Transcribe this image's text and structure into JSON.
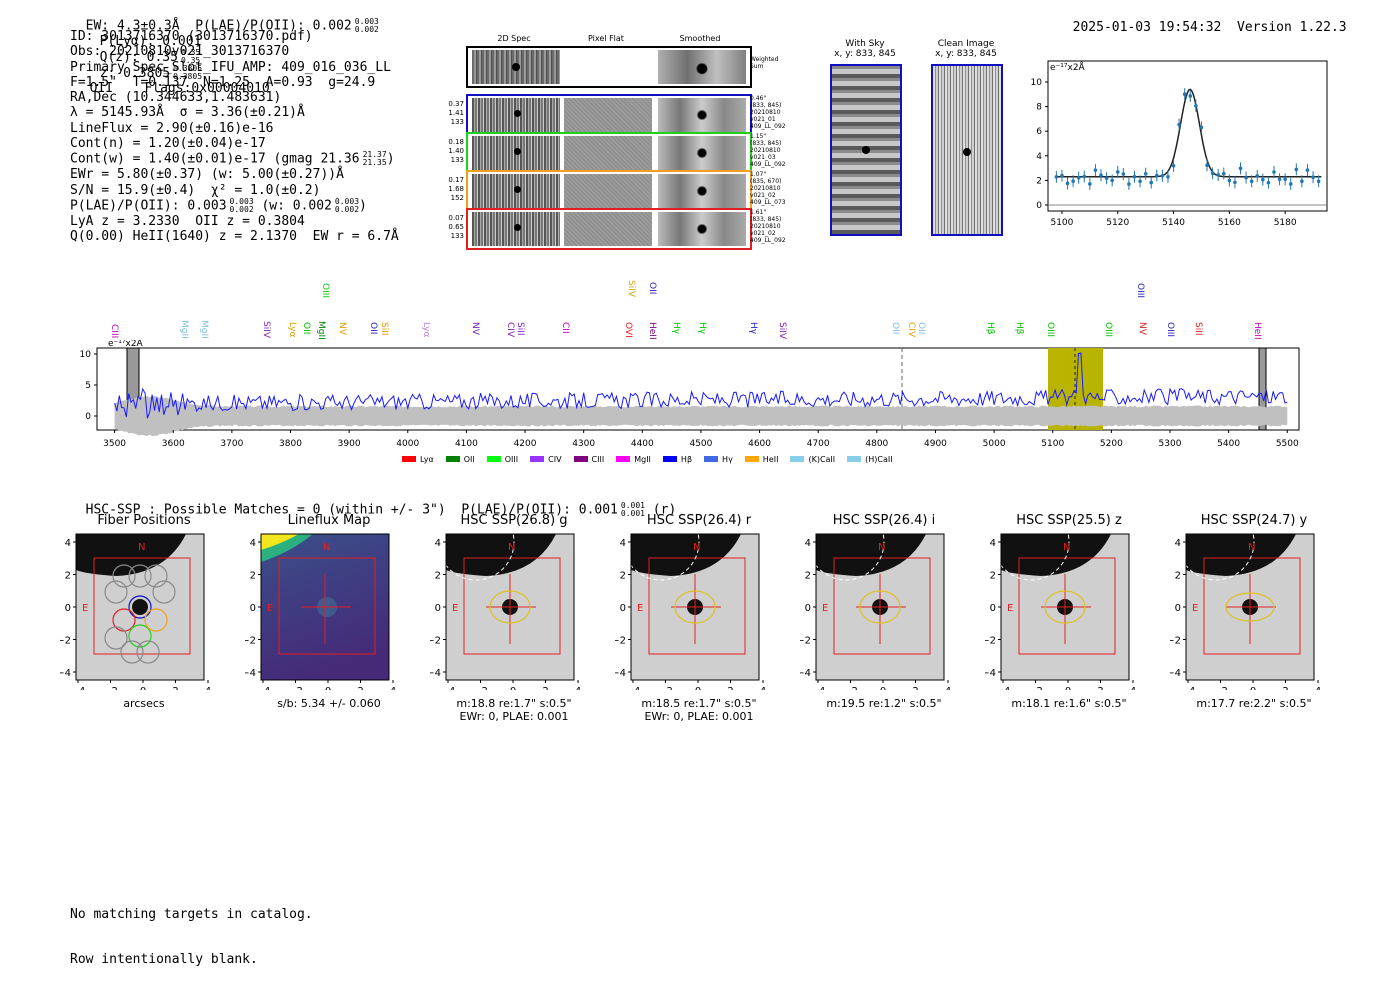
{
  "header": {
    "summary": "EW: 4.3±0.3Å  P(LAE)/P(OII): 0.002",
    "plae_sup": "0.003",
    "plae_sub": "0.002",
    "plya": "P(Lyα): 0.001",
    "qz": "Q(z): 0.35",
    "qz_sup": "0.35",
    "qz_sub": "0.35",
    "z": "z: 0.3805",
    "z_sup": "0.3805",
    "z_sub": "0.3805",
    "z_tail": "OII    Flags:0x00004010",
    "timestamp": "2025-01-03 19:54:32",
    "version": "Version 1.22.3"
  },
  "info": {
    "lines": [
      "ID: 3013716370 (3013716370.pdf)",
      "Obs: 20210810v021_3013716370",
      "Primary Spec_Slot_IFU_AMP: 409_016_036_LL",
      "F=1.5\"  T=0.137  N=1.25  A=0.93  g=24.9",
      "RA,Dec (10.344633,1.483631)",
      "λ = 5145.93Å  σ = 3.36(±0.21)Å",
      "LineFlux = 2.90(±0.16)e-16",
      "Cont(n) = 1.20(±0.04)e-17",
      "Cont(w) = 1.40(±0.01)e-17 (gmag 21.36",
      "EWr = 5.80(±0.37) (w: 5.00(±0.27))Å",
      "S/N = 15.9(±0.4)  χ² = 1.0(±0.2)",
      "P(LAE)/P(OII): 0.003",
      "LyA z = 3.2330  OII z = 0.3804",
      "Q(0.00) HeII(1640) z = 2.1370  EW r = 6.7Å"
    ],
    "gmag_sup": "21.37",
    "gmag_sub": "21.35",
    "plae2_sup": "0.003",
    "plae2_sub": "0.002",
    "plae2_tail": "(w: 0.002",
    "plae2_w_sup": "0.003",
    "plae2_w_sub": "0.002"
  },
  "spec2d": {
    "col_labels": [
      "2D Spec",
      "Pixel Flat",
      "Smoothed"
    ],
    "weighted_label": "Weighted Sum",
    "rows": [
      {
        "stats": [
          "0.37",
          "1.41",
          "133"
        ],
        "meta": [
          "0.46\"",
          "(833, 845)",
          "20210810",
          "v021_01",
          "409_LL_092"
        ],
        "color": "#1010c0"
      },
      {
        "stats": [
          "0.18",
          "1.40",
          "133"
        ],
        "meta": [
          "1.15\"",
          "(833, 845)",
          "20210810",
          "v021_03",
          "409_LL_092"
        ],
        "color": "#20d020"
      },
      {
        "stats": [
          "0.17",
          "1.68",
          "152"
        ],
        "meta": [
          "1.07\"",
          "(835, 670)",
          "20210810",
          "v021_02",
          "409_LL_073"
        ],
        "color": "#f0a020"
      },
      {
        "stats": [
          "0.07",
          "0.65",
          "133"
        ],
        "meta": [
          "1.61\"",
          "(833, 845)",
          "20210810",
          "v021_02",
          "409_LL_092"
        ],
        "color": "#e02020"
      }
    ]
  },
  "cutouts": {
    "with_sky": "With Sky",
    "with_sky_xy": "x, y: 833, 845",
    "clean": "Clean Image",
    "clean_xy": "x, y: 833, 845"
  },
  "line_fit": {
    "unit": "e⁻¹⁷x2Å",
    "yticks": [
      "0",
      "2",
      "4",
      "6",
      "8",
      "10"
    ],
    "xticks": [
      "5100",
      "5120",
      "5140",
      "5160",
      "5180"
    ]
  },
  "full_spec": {
    "unit": "e⁻¹⁷x2Å",
    "yticks": [
      "0",
      "5",
      "10"
    ],
    "xticks": [
      "3500",
      "3600",
      "3700",
      "3800",
      "3900",
      "4000",
      "4100",
      "4200",
      "4300",
      "4400",
      "4500",
      "4600",
      "4700",
      "4800",
      "4900",
      "5000",
      "5100",
      "5200",
      "5300",
      "5400",
      "5500"
    ],
    "lines": [
      {
        "label": "CIII",
        "x": 113,
        "y": 324,
        "color": "#c000c0"
      },
      {
        "label": "MgII",
        "x": 183,
        "y": 320,
        "color": "#80c0e0"
      },
      {
        "label": "MgII",
        "x": 203,
        "y": 320,
        "color": "#80c0e0"
      },
      {
        "label": "SiIV",
        "x": 265,
        "y": 321,
        "color": "#8020c0"
      },
      {
        "label": "Lyα",
        "x": 291,
        "y": 322,
        "color": "#e0a000"
      },
      {
        "label": "OII",
        "x": 305,
        "y": 322,
        "color": "#00c000"
      },
      {
        "label": "MgII",
        "x": 320,
        "y": 321,
        "color": "#008000"
      },
      {
        "label": "OIII",
        "x": 324,
        "y": 283,
        "color": "#00d000"
      },
      {
        "label": "NV",
        "x": 341,
        "y": 322,
        "color": "#e0a000"
      },
      {
        "label": "OII",
        "x": 372,
        "y": 322,
        "color": "#2020c0"
      },
      {
        "label": "SiII",
        "x": 383,
        "y": 322,
        "color": "#e0a000"
      },
      {
        "label": "Lyα",
        "x": 425,
        "y": 322,
        "color": "#c080e0"
      },
      {
        "label": "NV",
        "x": 474,
        "y": 322,
        "color": "#8020c0"
      },
      {
        "label": "CIV",
        "x": 509,
        "y": 322,
        "color": "#8020c0"
      },
      {
        "label": "SiII",
        "x": 519,
        "y": 322,
        "color": "#8020c0"
      },
      {
        "label": "CII",
        "x": 564,
        "y": 322,
        "color": "#c000c0"
      },
      {
        "label": "SiIV",
        "x": 630,
        "y": 280,
        "color": "#e0a000"
      },
      {
        "label": "OVI",
        "x": 627,
        "y": 322,
        "color": "#e02020"
      },
      {
        "label": "OII",
        "x": 651,
        "y": 282,
        "color": "#2020c0"
      },
      {
        "label": "HeII",
        "x": 651,
        "y": 322,
        "color": "#800080"
      },
      {
        "label": "Hγ",
        "x": 675,
        "y": 322,
        "color": "#00c000"
      },
      {
        "label": "Hγ",
        "x": 701,
        "y": 322,
        "color": "#00c000"
      },
      {
        "label": "Hγ",
        "x": 752,
        "y": 322,
        "color": "#2020c0"
      },
      {
        "label": "SiIV",
        "x": 781,
        "y": 322,
        "color": "#8020c0"
      },
      {
        "label": "OII",
        "x": 894,
        "y": 322,
        "color": "#80c0e0"
      },
      {
        "label": "CIV",
        "x": 910,
        "y": 322,
        "color": "#e0a000"
      },
      {
        "label": "OII",
        "x": 920,
        "y": 322,
        "color": "#80c0e0"
      },
      {
        "label": "Hβ",
        "x": 989,
        "y": 322,
        "color": "#00c000"
      },
      {
        "label": "Hβ",
        "x": 1018,
        "y": 322,
        "color": "#00c000"
      },
      {
        "label": "OIII",
        "x": 1049,
        "y": 322,
        "color": "#00c000"
      },
      {
        "label": "OIII",
        "x": 1107,
        "y": 322,
        "color": "#00c000"
      },
      {
        "label": "OIII",
        "x": 1139,
        "y": 283,
        "color": "#2020c0"
      },
      {
        "label": "NV",
        "x": 1141,
        "y": 322,
        "color": "#e02020"
      },
      {
        "label": "OIII",
        "x": 1169,
        "y": 322,
        "color": "#2020c0"
      },
      {
        "label": "SiII",
        "x": 1197,
        "y": 322,
        "color": "#e02020"
      },
      {
        "label": "HeII",
        "x": 1256,
        "y": 322,
        "color": "#c000c0"
      }
    ],
    "legend": [
      {
        "label": "Lyα",
        "color": "#ff0000"
      },
      {
        "label": "OII",
        "color": "#008000"
      },
      {
        "label": "OIII",
        "color": "#00ff00"
      },
      {
        "label": "CIV",
        "color": "#9933ff"
      },
      {
        "label": "CIII",
        "color": "#800080"
      },
      {
        "label": "MgII",
        "color": "#ff00ff"
      },
      {
        "label": "Hβ",
        "color": "#0000ff"
      },
      {
        "label": "Hγ",
        "color": "#4169e1"
      },
      {
        "label": "HeII",
        "color": "#ffa500"
      },
      {
        "label": "(K)CaII",
        "color": "#87ceeb"
      },
      {
        "label": "(H)CaII",
        "color": "#87ceeb"
      }
    ]
  },
  "hsc": {
    "title": "HSC-SSP : Possible Matches = 0 (within +/- 3\")  P(LAE)/P(OII): 0.001",
    "title_sup": "0.001",
    "title_sub": "0.001",
    "title_tail": "(r)",
    "ticks": [
      "4",
      "2",
      "0",
      "−2",
      "−4"
    ],
    "xticks": [
      "−4",
      "−2",
      "0",
      "2",
      "4"
    ],
    "panels": [
      {
        "title": "Fiber Positions",
        "note": "arcsecs",
        "note2": ""
      },
      {
        "title": "Lineflux Map",
        "note": "s/b: 5.34 +/- 0.060",
        "note2": ""
      },
      {
        "title": "HSC SSP(26.8) g",
        "note": "m:18.8  re:1.7\"  s:0.5\"",
        "note2": "EWr: 0, PLAE: 0.001"
      },
      {
        "title": "HSC SSP(26.4) r",
        "note": "m:18.5  re:1.7\"  s:0.5\"",
        "note2": "EWr: 0, PLAE: 0.001"
      },
      {
        "title": "HSC SSP(26.4) i",
        "note": "m:19.5  re:1.2\"  s:0.5\"",
        "note2": ""
      },
      {
        "title": "HSC SSP(25.5) z",
        "note": "m:18.1  re:1.6\"  s:0.5\"",
        "note2": ""
      },
      {
        "title": "HSC SSP(24.7) y",
        "note": "m:17.7  re:2.2\"  s:0.5\"",
        "note2": ""
      }
    ],
    "north": "N",
    "east": "E"
  },
  "footer": {
    "line1": "No matching targets in catalog.",
    "line2": "Row intentionally blank."
  }
}
